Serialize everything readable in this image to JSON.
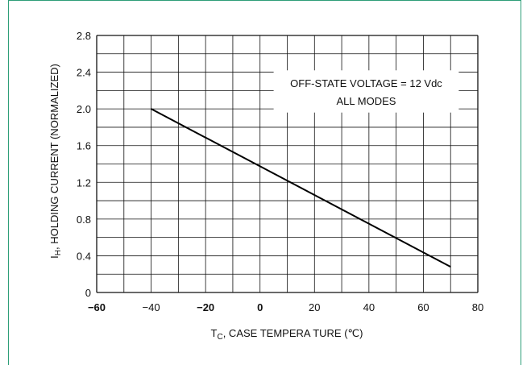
{
  "chart_data": {
    "type": "line",
    "title": "",
    "xlabel": {
      "main": "T",
      "sub": "C",
      "rest": ", CASE TEMPERA TURE (℃)"
    },
    "ylabel": {
      "main": "I",
      "sub": "H",
      "rest": ", HOLDING CURRENT (NORMALIZED)"
    },
    "xlim": [
      -60,
      80
    ],
    "ylim": [
      0,
      2.8
    ],
    "x_grid_step": 10,
    "y_grid_step": 0.2,
    "grid": true,
    "x_ticks": [
      {
        "value": -60,
        "label": "−60",
        "bold": true
      },
      {
        "value": -40,
        "label": "−40",
        "bold": false
      },
      {
        "value": -20,
        "label": "−20",
        "bold": true
      },
      {
        "value": 0,
        "label": "0",
        "bold": true
      },
      {
        "value": 20,
        "label": "20",
        "bold": false
      },
      {
        "value": 40,
        "label": "40",
        "bold": false
      },
      {
        "value": 60,
        "label": "60",
        "bold": false
      },
      {
        "value": 80,
        "label": "80",
        "bold": false
      }
    ],
    "y_ticks": [
      {
        "value": 0,
        "label": "0"
      },
      {
        "value": 0.4,
        "label": "0.4"
      },
      {
        "value": 0.8,
        "label": "0.8"
      },
      {
        "value": 1.2,
        "label": "1.2"
      },
      {
        "value": 1.6,
        "label": "1.6"
      },
      {
        "value": 2.0,
        "label": "2.0"
      },
      {
        "value": 2.4,
        "label": "2.4"
      },
      {
        "value": 2.8,
        "label": "2.8"
      }
    ],
    "series": [
      {
        "x": [
          -40,
          70
        ],
        "y": [
          2.0,
          0.28
        ],
        "color": "#000000"
      }
    ],
    "annotations": [
      "OFF-STATE VOLTAGE = 12 Vdc",
      "ALL MODES"
    ]
  }
}
